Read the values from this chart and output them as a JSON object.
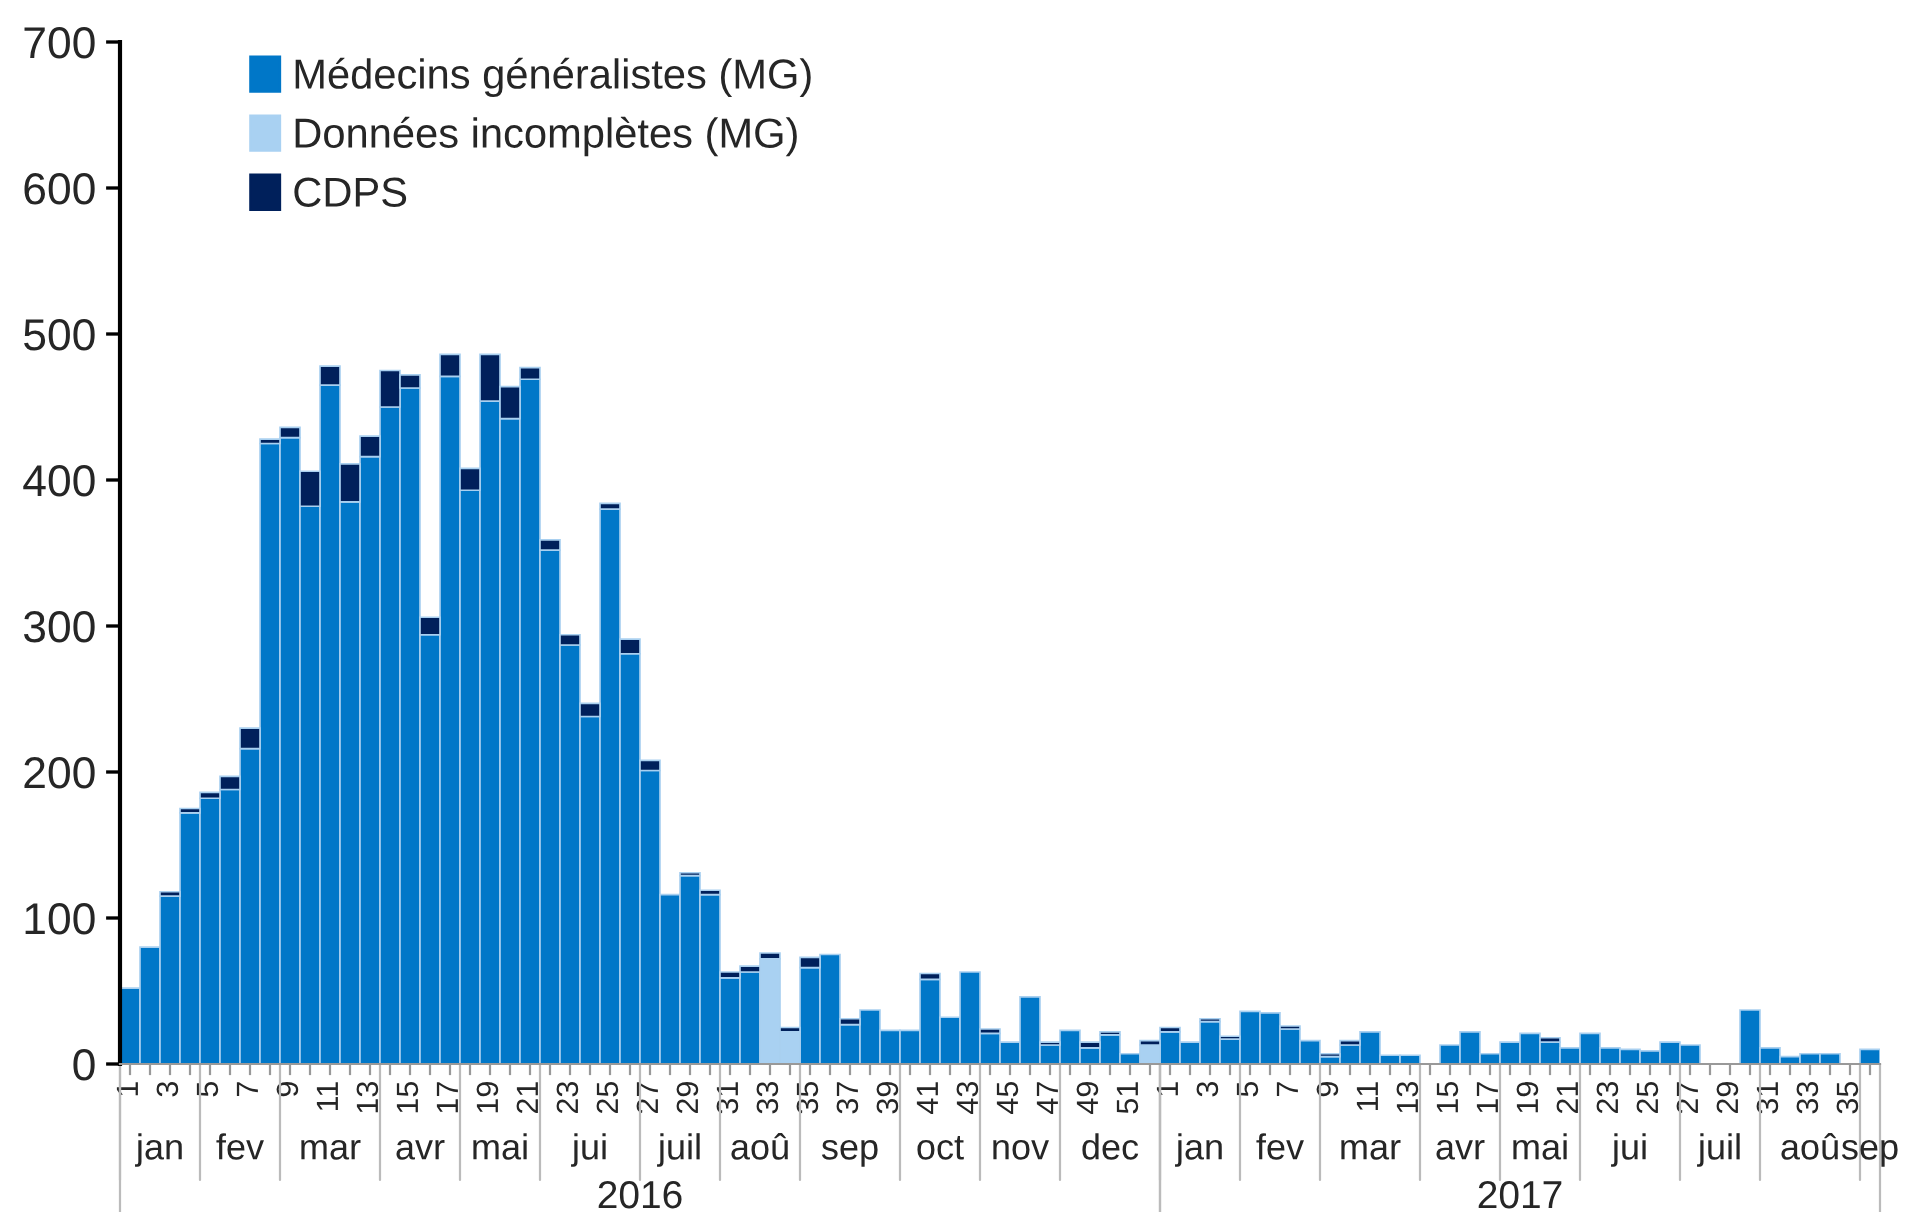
{
  "chart_data": {
    "type": "bar",
    "stacked": true,
    "legend": "top left",
    "categories": [
      "1",
      null,
      "3",
      null,
      "5",
      null,
      "7",
      null,
      "9",
      null,
      "11",
      null,
      "13",
      null,
      "15",
      null,
      "17",
      null,
      "19",
      null,
      "21",
      null,
      "23",
      null,
      "25",
      null,
      "27",
      null,
      "29",
      null,
      "31",
      null,
      "33",
      null,
      "35",
      null,
      "37",
      null,
      "39",
      null,
      "41",
      null,
      "43",
      null,
      "45",
      null,
      "47",
      null,
      "49",
      null,
      "51",
      null,
      "1",
      null,
      "3",
      null,
      "5",
      null,
      "7",
      null,
      "9",
      null,
      "11",
      null,
      "13",
      null,
      "15",
      null,
      "17",
      null,
      "19",
      null,
      "21",
      null,
      "23",
      null,
      "25",
      null,
      "27",
      null,
      "29",
      null,
      "31",
      null,
      "33",
      null,
      "35",
      null
    ],
    "series": [
      {
        "name": "Médecins généralistes (MG)",
        "color": "#0077c8",
        "values": [
          52,
          80,
          115,
          172,
          182,
          188,
          216,
          425,
          429,
          382,
          465,
          385,
          416,
          450,
          463,
          294,
          471,
          393,
          454,
          442,
          469,
          352,
          287,
          238,
          380,
          281,
          201,
          116,
          129,
          116,
          59,
          63,
          null,
          null,
          66,
          75,
          27,
          37,
          23,
          23,
          58,
          32,
          63,
          21,
          15,
          46,
          13,
          23,
          11,
          20,
          7,
          null,
          22,
          15,
          29,
          17,
          36,
          35,
          24,
          16,
          5,
          13,
          22,
          6,
          6,
          null,
          13,
          22,
          7,
          15,
          21,
          15,
          11,
          21,
          11,
          10,
          9,
          15,
          13,
          null,
          null,
          37,
          11,
          5,
          7,
          7,
          null,
          10
        ]
      },
      {
        "name": "Données incomplètes (MG)",
        "color": "#a9d1f2",
        "values": [
          null,
          null,
          null,
          null,
          null,
          null,
          null,
          null,
          null,
          null,
          null,
          null,
          null,
          null,
          null,
          null,
          null,
          null,
          null,
          null,
          null,
          null,
          null,
          null,
          null,
          null,
          null,
          null,
          null,
          null,
          null,
          null,
          72,
          22,
          null,
          null,
          null,
          null,
          null,
          null,
          null,
          null,
          null,
          null,
          null,
          null,
          null,
          null,
          null,
          null,
          null,
          13,
          null,
          null,
          null,
          null,
          null,
          null,
          null,
          null,
          null,
          null,
          null,
          null,
          null,
          null,
          null,
          null,
          null,
          null,
          null,
          null,
          null,
          null,
          null,
          null,
          null,
          null,
          null,
          null,
          null,
          null,
          null,
          null,
          null,
          null,
          null,
          null
        ]
      },
      {
        "name": "CDPS",
        "color": "#00205b",
        "values": [
          null,
          null,
          3,
          3,
          4,
          9,
          14,
          3,
          7,
          24,
          13,
          26,
          14,
          25,
          9,
          12,
          15,
          15,
          32,
          22,
          8,
          7,
          7,
          9,
          4,
          10,
          7,
          null,
          2,
          3,
          4,
          4,
          4,
          3,
          7,
          null,
          4,
          null,
          null,
          null,
          4,
          null,
          null,
          3,
          null,
          null,
          2,
          null,
          4,
          2,
          null,
          3,
          3,
          null,
          2,
          2,
          null,
          null,
          2,
          null,
          2,
          3,
          null,
          null,
          null,
          null,
          null,
          null,
          null,
          null,
          null,
          3,
          null,
          null,
          null,
          null,
          null,
          null,
          null,
          null,
          null,
          null,
          null,
          null,
          null,
          null,
          null,
          null
        ]
      }
    ],
    "ylim": [
      0,
      700
    ],
    "yticks": [
      0,
      100,
      200,
      300,
      400,
      500,
      600,
      700
    ],
    "annotations": [
      "2016",
      "jan",
      "fev",
      "mar",
      "avr",
      "mai",
      "jui",
      "juil",
      "aoû",
      "sep",
      "oct",
      "nov",
      "dec",
      "2017",
      "jan",
      "fev",
      "mar",
      "avr",
      "mai",
      "jui",
      "juil",
      "aoû",
      "sep"
    ]
  }
}
